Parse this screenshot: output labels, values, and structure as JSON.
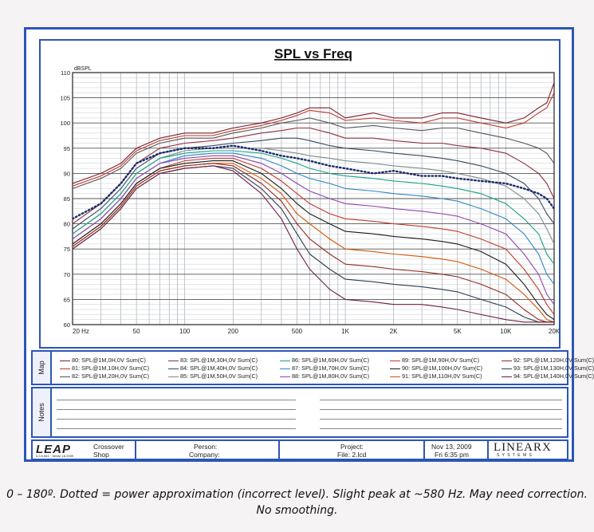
{
  "chart_data": {
    "type": "line",
    "title": "SPL vs Freq",
    "ylabel": "dBSPL",
    "xlabel": "",
    "xscale": "log",
    "xlim": [
      20,
      20000
    ],
    "ylim": [
      60,
      110
    ],
    "grid": true,
    "x_ticks": [
      {
        "v": 20,
        "label": "20 Hz"
      },
      {
        "v": 50,
        "label": "50"
      },
      {
        "v": 100,
        "label": "100"
      },
      {
        "v": 200,
        "label": "200"
      },
      {
        "v": 500,
        "label": "500"
      },
      {
        "v": 1000,
        "label": "1K"
      },
      {
        "v": 2000,
        "label": "2K"
      },
      {
        "v": 5000,
        "label": "5K"
      },
      {
        "v": 10000,
        "label": "10K"
      },
      {
        "v": 20000,
        "label": "20K"
      }
    ],
    "y_ticks": [
      60,
      65,
      70,
      75,
      80,
      85,
      90,
      95,
      100,
      105,
      110
    ],
    "freqs": [
      20,
      30,
      40,
      50,
      70,
      100,
      150,
      200,
      300,
      400,
      500,
      600,
      800,
      1000,
      1500,
      2000,
      3000,
      4000,
      5000,
      7000,
      10000,
      13000,
      16000,
      18000,
      20000
    ],
    "series": [
      {
        "name": "80: SPL@1M,0H,0V Sum(C)",
        "color": "#7a1f2b",
        "values": [
          88,
          90,
          92,
          95,
          97,
          98,
          98,
          99,
          100,
          101,
          102,
          103,
          103,
          101,
          102,
          101,
          101,
          102,
          102,
          101,
          100,
          101,
          103,
          104,
          108
        ]
      },
      {
        "name": "81: SPL@1M,10H,0V Sum(C)",
        "color": "#c0392b",
        "values": [
          87.5,
          89.5,
          91.5,
          94.5,
          96.5,
          97.5,
          97.5,
          98.5,
          99.5,
          100.5,
          101.5,
          102.5,
          102,
          100.5,
          101,
          100.5,
          100,
          101,
          101,
          100,
          99,
          100,
          102,
          103,
          106
        ]
      },
      {
        "name": "82: SPL@1M,20H,0V Sum(C)",
        "color": "#555555",
        "values": [
          87,
          89,
          91,
          94,
          96,
          97,
          97,
          98,
          99,
          100,
          100.5,
          101,
          100,
          99,
          99.5,
          99,
          98.5,
          99,
          99,
          98,
          97,
          96,
          95,
          94,
          92
        ]
      },
      {
        "name": "83: SPL@1M,30H,0V Sum(C)",
        "color": "#8e2f3b",
        "values": [
          80,
          84,
          88,
          92,
          95,
          96,
          96.5,
          97,
          98,
          98.5,
          99,
          99,
          98,
          97,
          97,
          96.5,
          96,
          96,
          95.5,
          95,
          94,
          92,
          90,
          88,
          85
        ]
      },
      {
        "name": "84: SPL@1M,40H,0V Sum(C)",
        "color": "#34495e",
        "values": [
          79,
          83,
          87,
          91,
          94,
          95,
          95.5,
          96,
          96.5,
          97,
          97,
          96.5,
          95.5,
          95,
          94.5,
          94,
          93.5,
          93,
          92.5,
          91.5,
          90,
          88,
          85,
          82,
          80
        ]
      },
      {
        "name": "85: SPL@1M,50H,0V Sum(C)",
        "color": "#7f8c8d",
        "values": [
          78,
          82,
          86,
          90,
          93,
          94.5,
          95,
          95,
          95,
          94.5,
          94,
          93.5,
          93,
          92.5,
          92,
          91.5,
          91,
          90.5,
          90,
          89,
          87.5,
          85,
          82,
          79,
          76
        ]
      },
      {
        "name": "86: SPL@1M,60H,0V Sum(C)",
        "color": "#16a085",
        "values": [
          78,
          82,
          86,
          90,
          93,
          94,
          94.5,
          94.5,
          94,
          93,
          92,
          91,
          90,
          89.5,
          89,
          88.5,
          88,
          87.5,
          87,
          86,
          84,
          81,
          78,
          74,
          72
        ]
      },
      {
        "name": "87: SPL@1M,70H,0V Sum(C)",
        "color": "#2e86c1",
        "values": [
          77,
          81,
          85,
          89,
          92,
          93.5,
          94,
          94,
          93,
          91.5,
          90,
          89,
          88,
          87,
          86.5,
          86,
          85.5,
          85,
          84.5,
          83,
          81,
          78,
          74,
          70,
          68
        ]
      },
      {
        "name": "88: SPL@1M,80H,0V Sum(C)",
        "color": "#8e44ad",
        "values": [
          77,
          81,
          85,
          89,
          92,
          93,
          93.5,
          93.5,
          92,
          90,
          88,
          86.5,
          85,
          84,
          83.5,
          83,
          82.5,
          82,
          81.5,
          80,
          78,
          74,
          70,
          66,
          64
        ]
      },
      {
        "name": "89: SPL@1M,90H,0V Sum(C)",
        "color": "#c0392b",
        "values": [
          76,
          80,
          84,
          88,
          91,
          92.5,
          93,
          93,
          91,
          88.5,
          86,
          84,
          82,
          81,
          80.5,
          80,
          79.5,
          79,
          78.5,
          77,
          75,
          71,
          67,
          64,
          62
        ]
      },
      {
        "name": "90: SPL@1M,100H,0V Sum(C)",
        "color": "#1a1a1a",
        "values": [
          76,
          80,
          84,
          88,
          91,
          92,
          92.5,
          92.5,
          90,
          87,
          84,
          82,
          80,
          78.5,
          78,
          77.5,
          77,
          76.5,
          76,
          74.5,
          72,
          68,
          64,
          62,
          61
        ]
      },
      {
        "name": "91: SPL@1M,110H,0V Sum(C)",
        "color": "#d35400",
        "values": [
          75.5,
          79.5,
          83.5,
          87.5,
          90.5,
          91.5,
          92,
          92,
          89,
          86,
          82,
          80,
          77,
          75,
          74.5,
          74,
          73.5,
          73,
          72.5,
          71,
          69,
          66,
          63,
          61,
          60.5
        ]
      },
      {
        "name": "92: SPL@1M,120H,0V Sum(C)",
        "color": "#922b21",
        "values": [
          75.5,
          79.5,
          83.5,
          87.5,
          90.5,
          91.5,
          92,
          91.5,
          88,
          84.5,
          80,
          77,
          74,
          72,
          71.5,
          71,
          70.5,
          70,
          69.5,
          68,
          66,
          63,
          61,
          60.5,
          60.5
        ]
      },
      {
        "name": "93: SPL@1M,130H,0V Sum(C)",
        "color": "#2c3e50",
        "values": [
          75,
          79,
          83,
          87,
          90,
          91,
          91.5,
          91,
          87,
          83,
          78,
          74,
          71,
          69,
          68.5,
          68,
          67.5,
          67,
          66.5,
          65,
          63.5,
          61.5,
          60.5,
          60.5,
          60.5
        ]
      },
      {
        "name": "94: SPL@1M,140H,0V Sum(C)",
        "color": "#6c1d45",
        "values": [
          75,
          79,
          83,
          87,
          90,
          91,
          91.5,
          90.5,
          86,
          81,
          75,
          71,
          67,
          65,
          64.5,
          64,
          64,
          63.5,
          63,
          62,
          61,
          60.5,
          60.5,
          60.5,
          60.5
        ]
      },
      {
        "name": "",
        "color": "#1a2a6c",
        "dotted": true,
        "values": [
          81,
          84,
          88,
          92,
          94,
          95,
          95,
          95.5,
          94.5,
          93.5,
          93,
          92.5,
          91.5,
          91,
          90,
          90.5,
          89.5,
          89.5,
          89,
          88.5,
          88,
          87,
          86,
          85,
          83
        ]
      }
    ]
  },
  "footer": {
    "logo": "LEAP",
    "logo_sub": "5.3.5.561 · Serial: 16,2009",
    "crossover": "Crossover",
    "shop": "Shop",
    "person_label": "Person:",
    "company_label": "Company:",
    "project_label": "Project:",
    "file_label": "File: 2.lcd",
    "date": "Nov 13, 2009",
    "time": "Fri  6:35 pm",
    "brand": "LINEARX",
    "brand_sub": "S Y S T E M S"
  },
  "tabs": {
    "map": "Map",
    "notes": "Notes"
  },
  "caption": {
    "line1": "0 – 180º. Dotted = power approximation (incorrect level). Slight peak at ~580 Hz. May need correction.",
    "line2": "No smoothing."
  }
}
